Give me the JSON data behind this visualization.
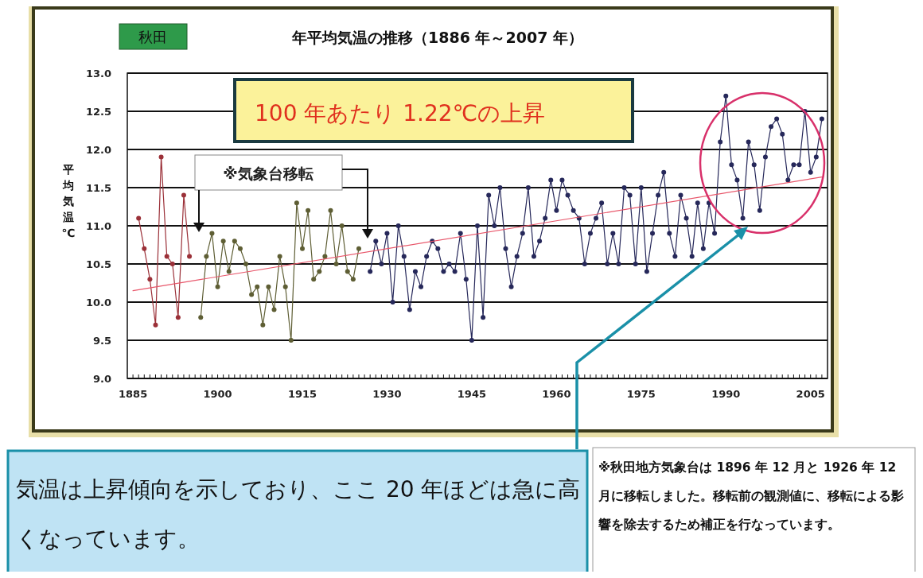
{
  "chart_data": {
    "type": "line",
    "title": "年平均気温の推移（1886 年～2007 年）",
    "subtitle": "秋田",
    "ylabel": "平均気温℃",
    "x": [
      1886,
      1887,
      1888,
      1889,
      1890,
      1891,
      1892,
      1893,
      1894,
      1895,
      1896,
      1897,
      1898,
      1899,
      1900,
      1901,
      1902,
      1903,
      1904,
      1905,
      1906,
      1907,
      1908,
      1909,
      1910,
      1911,
      1912,
      1913,
      1914,
      1915,
      1916,
      1917,
      1918,
      1919,
      1920,
      1921,
      1922,
      1923,
      1924,
      1925,
      1926,
      1927,
      1928,
      1929,
      1930,
      1931,
      1932,
      1933,
      1934,
      1935,
      1936,
      1937,
      1938,
      1939,
      1940,
      1941,
      1942,
      1943,
      1944,
      1945,
      1946,
      1947,
      1948,
      1949,
      1950,
      1951,
      1952,
      1953,
      1954,
      1955,
      1956,
      1957,
      1958,
      1959,
      1960,
      1961,
      1962,
      1963,
      1964,
      1965,
      1966,
      1967,
      1968,
      1969,
      1970,
      1971,
      1972,
      1973,
      1974,
      1975,
      1976,
      1977,
      1978,
      1979,
      1980,
      1981,
      1982,
      1983,
      1984,
      1985,
      1986,
      1987,
      1988,
      1989,
      1990,
      1991,
      1992,
      1993,
      1994,
      1995,
      1996,
      1997,
      1998,
      1999,
      2000,
      2001,
      2002,
      2003,
      2004,
      2005,
      2006,
      2007
    ],
    "series": [
      {
        "color": "#9b3038",
        "values": [
          11.1,
          10.7,
          10.3,
          9.7,
          11.9,
          10.6,
          10.5,
          9.8,
          11.4,
          10.6,
          null,
          null,
          null,
          null,
          null,
          null,
          null,
          null,
          null,
          null,
          null,
          null,
          null,
          null,
          null,
          null,
          null,
          null,
          null,
          null,
          null,
          null,
          null,
          null,
          null,
          null,
          null,
          null,
          null,
          null,
          null,
          null,
          null,
          null,
          null,
          null,
          null,
          null,
          null,
          null,
          null,
          null,
          null,
          null,
          null,
          null,
          null,
          null,
          null,
          null,
          null,
          null,
          null,
          null,
          null,
          null,
          null,
          null,
          null,
          null,
          null,
          null,
          null,
          null,
          null,
          null,
          null,
          null,
          null,
          null,
          null,
          null,
          null,
          null,
          null,
          null,
          null,
          null,
          null,
          null,
          null,
          null,
          null,
          null,
          null,
          null,
          null,
          null,
          null,
          null,
          null,
          null,
          null,
          null,
          null,
          null,
          null,
          null,
          null,
          null,
          null,
          null,
          null,
          null,
          null,
          null,
          null,
          null,
          null,
          null,
          null,
          null
        ]
      },
      {
        "color": "#5e5e34",
        "values": [
          null,
          null,
          null,
          null,
          null,
          null,
          null,
          null,
          null,
          null,
          null,
          9.8,
          10.6,
          10.9,
          10.2,
          10.8,
          10.4,
          10.8,
          10.7,
          10.5,
          10.1,
          10.2,
          9.7,
          10.2,
          9.9,
          10.6,
          10.2,
          9.5,
          11.3,
          10.7,
          11.2,
          10.3,
          10.4,
          10.6,
          11.2,
          10.5,
          11.0,
          10.4,
          10.3,
          10.7,
          null,
          null,
          null,
          null,
          null,
          null,
          null,
          null,
          null,
          null,
          null,
          null,
          null,
          null,
          null,
          null,
          null,
          null,
          null,
          null,
          null,
          null,
          null,
          null,
          null,
          null,
          null,
          null,
          null,
          null,
          null,
          null,
          null,
          null,
          null,
          null,
          null,
          null,
          null,
          null,
          null,
          null,
          null,
          null,
          null,
          null,
          null,
          null,
          null,
          null,
          null,
          null,
          null,
          null,
          null,
          null,
          null,
          null,
          null,
          null,
          null,
          null,
          null,
          null,
          null,
          null,
          null,
          null,
          null,
          null,
          null,
          null,
          null,
          null,
          null,
          null,
          null,
          null,
          null,
          null,
          null,
          null
        ]
      },
      {
        "color": "#26285a",
        "values": [
          null,
          null,
          null,
          null,
          null,
          null,
          null,
          null,
          null,
          null,
          null,
          null,
          null,
          null,
          null,
          null,
          null,
          null,
          null,
          null,
          null,
          null,
          null,
          null,
          null,
          null,
          null,
          null,
          null,
          null,
          null,
          null,
          null,
          null,
          null,
          null,
          null,
          null,
          null,
          null,
          null,
          10.4,
          10.8,
          10.5,
          10.9,
          10.0,
          11.0,
          10.6,
          9.9,
          10.4,
          10.2,
          10.6,
          10.8,
          10.7,
          10.4,
          10.5,
          10.4,
          10.9,
          10.3,
          9.5,
          11.0,
          9.8,
          11.4,
          11.0,
          11.5,
          10.7,
          10.2,
          10.6,
          10.9,
          11.5,
          10.6,
          10.8,
          11.1,
          11.6,
          11.2,
          11.6,
          11.4,
          11.2,
          11.1,
          10.5,
          10.9,
          11.1,
          11.3,
          10.5,
          10.9,
          10.5,
          11.5,
          11.4,
          10.5,
          11.5,
          10.4,
          10.9,
          11.4,
          11.7,
          10.9,
          10.6,
          11.4,
          11.1,
          10.6,
          11.3,
          10.7,
          11.3,
          10.9,
          12.1,
          12.7,
          11.8,
          11.6,
          11.1,
          12.1,
          11.8,
          11.2,
          11.9,
          12.3,
          12.4,
          12.2,
          11.6,
          11.8,
          11.8,
          12.5,
          11.7,
          11.9,
          12.4
        ]
      },
      {
        "type": "line",
        "marker": "none",
        "color": "#e8566a",
        "x": [
          1885,
          2007
        ],
        "values": [
          10.15,
          11.64
        ]
      }
    ],
    "xlim": [
      1884,
      2008
    ],
    "ylim": [
      9,
      13
    ],
    "xticks": [
      1885,
      {
        "value": 1886,
        "label": null
      },
      {
        "value": 1887,
        "label": null
      },
      {
        "value": 1888,
        "label": null
      },
      {
        "value": 1889,
        "label": null
      },
      {
        "value": 1890,
        "label": null
      },
      {
        "value": 1891,
        "label": null
      },
      {
        "value": 1892,
        "label": null
      },
      {
        "value": 1893,
        "label": null
      },
      {
        "value": 1894,
        "label": null
      },
      {
        "value": 1895,
        "label": null
      },
      {
        "value": 1896,
        "label": null
      },
      {
        "value": 1897,
        "label": null
      },
      {
        "value": 1898,
        "label": null
      },
      {
        "value": 1899,
        "label": null
      },
      1900,
      {
        "value": 1901,
        "label": null
      },
      {
        "value": 1902,
        "label": null
      },
      {
        "value": 1903,
        "label": null
      },
      {
        "value": 1904,
        "label": null
      },
      {
        "value": 1905,
        "label": null
      },
      {
        "value": 1906,
        "label": null
      },
      {
        "value": 1907,
        "label": null
      },
      {
        "value": 1908,
        "label": null
      },
      {
        "value": 1909,
        "label": null
      },
      {
        "value": 1910,
        "label": null
      },
      {
        "value": 1911,
        "label": null
      },
      {
        "value": 1912,
        "label": null
      },
      {
        "value": 1913,
        "label": null
      },
      {
        "value": 1914,
        "label": null
      },
      1915,
      {
        "value": 1916,
        "label": null
      },
      {
        "value": 1917,
        "label": null
      },
      {
        "value": 1918,
        "label": null
      },
      {
        "value": 1919,
        "label": null
      },
      {
        "value": 1920,
        "label": null
      },
      {
        "value": 1921,
        "label": null
      },
      {
        "value": 1922,
        "label": null
      },
      {
        "value": 1923,
        "label": null
      },
      {
        "value": 1924,
        "label": null
      },
      {
        "value": 1925,
        "label": null
      },
      {
        "value": 1926,
        "label": null
      },
      {
        "value": 1927,
        "label": null
      },
      {
        "value": 1928,
        "label": null
      },
      {
        "value": 1929,
        "label": null
      },
      1930,
      {
        "value": 1931,
        "label": null
      },
      {
        "value": 1932,
        "label": null
      },
      {
        "value": 1933,
        "label": null
      },
      {
        "value": 1934,
        "label": null
      },
      {
        "value": 1935,
        "label": null
      },
      {
        "value": 1936,
        "label": null
      },
      {
        "value": 1937,
        "label": null
      },
      {
        "value": 1938,
        "label": null
      },
      {
        "value": 1939,
        "label": null
      },
      {
        "value": 1940,
        "label": null
      },
      {
        "value": 1941,
        "label": null
      },
      {
        "value": 1942,
        "label": null
      },
      {
        "value": 1943,
        "label": null
      },
      {
        "value": 1944,
        "label": null
      },
      1945,
      {
        "value": 1946,
        "label": null
      },
      {
        "value": 1947,
        "label": null
      },
      {
        "value": 1948,
        "label": null
      },
      {
        "value": 1949,
        "label": null
      },
      {
        "value": 1950,
        "label": null
      },
      {
        "value": 1951,
        "label": null
      },
      {
        "value": 1952,
        "label": null
      },
      {
        "value": 1953,
        "label": null
      },
      {
        "value": 1954,
        "label": null
      },
      {
        "value": 1955,
        "label": null
      },
      {
        "value": 1956,
        "label": null
      },
      {
        "value": 1957,
        "label": null
      },
      {
        "value": 1958,
        "label": null
      },
      {
        "value": 1959,
        "label": null
      },
      1960,
      {
        "value": 1961,
        "label": null
      },
      {
        "value": 1962,
        "label": null
      },
      {
        "value": 1963,
        "label": null
      },
      {
        "value": 1964,
        "label": null
      },
      {
        "value": 1965,
        "label": null
      },
      {
        "value": 1966,
        "label": null
      },
      {
        "value": 1967,
        "label": null
      },
      {
        "value": 1968,
        "label": null
      },
      {
        "value": 1969,
        "label": null
      },
      {
        "value": 1970,
        "label": null
      },
      {
        "value": 1971,
        "label": null
      },
      {
        "value": 1972,
        "label": null
      },
      {
        "value": 1973,
        "label": null
      },
      {
        "value": 1974,
        "label": null
      },
      1975,
      {
        "value": 1976,
        "label": null
      },
      {
        "value": 1977,
        "label": null
      },
      {
        "value": 1978,
        "label": null
      },
      {
        "value": 1979,
        "label": null
      },
      {
        "value": 1980,
        "label": null
      },
      {
        "value": 1981,
        "label": null
      },
      {
        "value": 1982,
        "label": null
      },
      {
        "value": 1983,
        "label": null
      },
      {
        "value": 1984,
        "label": null
      },
      {
        "value": 1985,
        "label": null
      },
      {
        "value": 1986,
        "label": null
      },
      {
        "value": 1987,
        "label": null
      },
      {
        "value": 1988,
        "label": null
      },
      {
        "value": 1989,
        "label": null
      },
      1990,
      {
        "value": 1991,
        "label": null
      },
      {
        "value": 1992,
        "label": null
      },
      {
        "value": 1993,
        "label": null
      },
      {
        "value": 1994,
        "label": null
      },
      {
        "value": 1995,
        "label": null
      },
      {
        "value": 1996,
        "label": null
      },
      {
        "value": 1997,
        "label": null
      },
      {
        "value": 1998,
        "label": null
      },
      {
        "value": 1999,
        "label": null
      },
      {
        "value": 2000,
        "label": null
      },
      {
        "value": 2001,
        "label": null
      },
      {
        "value": 2002,
        "label": null
      },
      {
        "value": 2003,
        "label": null
      },
      {
        "value": 2004,
        "label": null
      },
      2005,
      {
        "value": 2006,
        "label": null
      },
      {
        "value": 2007,
        "label": null
      }
    ],
    "yticks": [
      {
        "value": 9,
        "label": "9.0"
      },
      {
        "value": 9.5,
        "label": "9.5"
      },
      {
        "value": 10,
        "label": "10.0"
      },
      {
        "value": 10.5,
        "label": "10.5"
      },
      {
        "value": 11,
        "label": "11.0"
      },
      {
        "value": 11.5,
        "label": "11.5"
      },
      {
        "value": 12,
        "label": "12.0"
      },
      {
        "value": 12.5,
        "label": "12.5"
      },
      {
        "value": 13,
        "label": "13.0"
      }
    ],
    "grid": "y",
    "marker": "circle",
    "annotations": [
      "100 年あたり 1.22℃の上昇",
      "※気象台移転",
      "気温は上昇傾向を示しており、ここ 20 年ほどは急に高くなっています。",
      "※秋田地方気象台は 1896 年 12 月と 1926 年 12 月に移転しました。移転前の観測値に、移転による影響を除去するため補正を行なっています。"
    ]
  }
}
